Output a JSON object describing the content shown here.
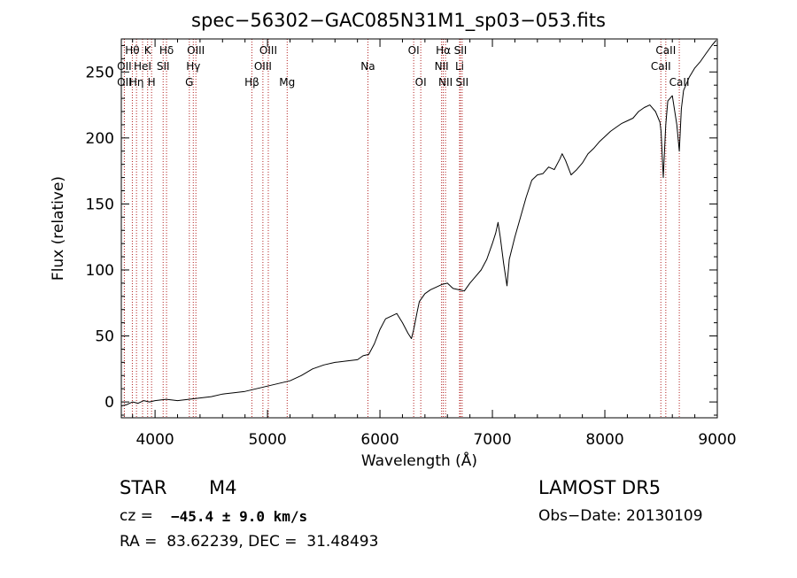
{
  "chart_data": {
    "type": "line",
    "title": "spec−56302−GAC085N31M1_sp03−053.fits",
    "xlabel": "Wavelength (Å)",
    "ylabel": "Flux (relative)",
    "xlim": [
      3700,
      9000
    ],
    "ylim": [
      -12,
      275
    ],
    "xticks": [
      4000,
      5000,
      6000,
      7000,
      8000,
      9000
    ],
    "xtick_labels": [
      "4000",
      "5000",
      "6000",
      "7000",
      "8000",
      "9000"
    ],
    "yticks": [
      0,
      50,
      100,
      150,
      200,
      250
    ],
    "ytick_labels": [
      "0",
      "50",
      "100",
      "150",
      "200",
      "250"
    ],
    "grid": false,
    "line_color": "#000000",
    "marker_line_color": "#b22222",
    "series": [
      {
        "x": [
          3700,
          3750,
          3800,
          3850,
          3900,
          3950,
          4000,
          4100,
          4200,
          4300,
          4400,
          4500,
          4600,
          4700,
          4800,
          4900,
          5000,
          5100,
          5200,
          5300,
          5400,
          5500,
          5600,
          5700,
          5800,
          5850,
          5900,
          5950,
          6000,
          6050,
          6100,
          6150,
          6200,
          6250,
          6280,
          6300,
          6330,
          6350,
          6400,
          6450,
          6500,
          6550,
          6600,
          6650,
          6700,
          6750,
          6800,
          6850,
          6900,
          6950,
          7000,
          7030,
          7050,
          7070,
          7100,
          7130,
          7150,
          7200,
          7250,
          7300,
          7350,
          7400,
          7450,
          7500,
          7550,
          7600,
          7620,
          7650,
          7700,
          7750,
          7800,
          7850,
          7900,
          7950,
          8000,
          8050,
          8100,
          8150,
          8200,
          8250,
          8300,
          8350,
          8400,
          8450,
          8490,
          8500,
          8520,
          8542,
          8560,
          8600,
          8640,
          8662,
          8680,
          8700,
          8750,
          8800,
          8850,
          8900,
          8950,
          8990
        ],
        "values": [
          -3,
          -2,
          0,
          -1,
          1,
          0,
          1,
          2,
          1,
          2,
          3,
          4,
          6,
          7,
          8,
          10,
          12,
          14,
          16,
          20,
          25,
          28,
          30,
          31,
          32,
          35,
          36,
          44,
          55,
          63,
          65,
          67,
          60,
          52,
          48,
          55,
          68,
          76,
          82,
          85,
          87,
          89,
          90,
          86,
          85,
          84,
          90,
          95,
          100,
          108,
          120,
          128,
          136,
          125,
          105,
          88,
          108,
          125,
          140,
          155,
          168,
          172,
          173,
          178,
          176,
          184,
          188,
          183,
          172,
          176,
          181,
          188,
          192,
          197,
          201,
          205,
          208,
          211,
          213,
          215,
          220,
          223,
          225,
          220,
          212,
          205,
          170,
          210,
          228,
          232,
          210,
          190,
          222,
          236,
          246,
          253,
          258,
          264,
          270,
          274
        ]
      }
    ],
    "line_markers": [
      {
        "label": "Hθ",
        "x": 3798,
        "row": 0
      },
      {
        "label": "OII",
        "x": 3727,
        "row": 1
      },
      {
        "label": "OII",
        "x": 3727,
        "row": 2
      },
      {
        "label": "Hη",
        "x": 3835,
        "row": 2
      },
      {
        "label": "K",
        "x": 3934,
        "row": 0
      },
      {
        "label": "HeI",
        "x": 3889,
        "row": 1
      },
      {
        "label": "H",
        "x": 3969,
        "row": 2
      },
      {
        "label": "Hδ",
        "x": 4102,
        "row": 0
      },
      {
        "label": "SII",
        "x": 4072,
        "row": 1
      },
      {
        "label": "OIII",
        "x": 4363,
        "row": 0
      },
      {
        "label": "Hγ",
        "x": 4340,
        "row": 1
      },
      {
        "label": "G",
        "x": 4305,
        "row": 2
      },
      {
        "label": "OIII",
        "x": 5007,
        "row": 0
      },
      {
        "label": "OIII",
        "x": 4959,
        "row": 1
      },
      {
        "label": "Hβ",
        "x": 4861,
        "row": 2
      },
      {
        "label": "Mg",
        "x": 5175,
        "row": 2
      },
      {
        "label": "Na",
        "x": 5893,
        "row": 1
      },
      {
        "label": "OI",
        "x": 6300,
        "row": 0
      },
      {
        "label": "OI",
        "x": 6363,
        "row": 2
      },
      {
        "label": "Hα",
        "x": 6563,
        "row": 0
      },
      {
        "label": "NII",
        "x": 6548,
        "row": 1
      },
      {
        "label": "NII",
        "x": 6583,
        "row": 2
      },
      {
        "label": "SII",
        "x": 6716,
        "row": 0
      },
      {
        "label": "Li",
        "x": 6708,
        "row": 1
      },
      {
        "label": "SII",
        "x": 6731,
        "row": 2
      },
      {
        "label": "CaII",
        "x": 8542,
        "row": 0
      },
      {
        "label": "CaII",
        "x": 8498,
        "row": 1
      },
      {
        "label": "CaII",
        "x": 8662,
        "row": 2
      }
    ]
  },
  "info": {
    "object_class": "STAR",
    "subclass": "M4",
    "survey": "LAMOST DR5",
    "cz_label": "cz =",
    "cz_value": "−45.4 ± 9.0 km/s",
    "obs_date": "Obs−Date: 20130109",
    "coords": "RA =  83.62239, DEC =  31.48493"
  }
}
